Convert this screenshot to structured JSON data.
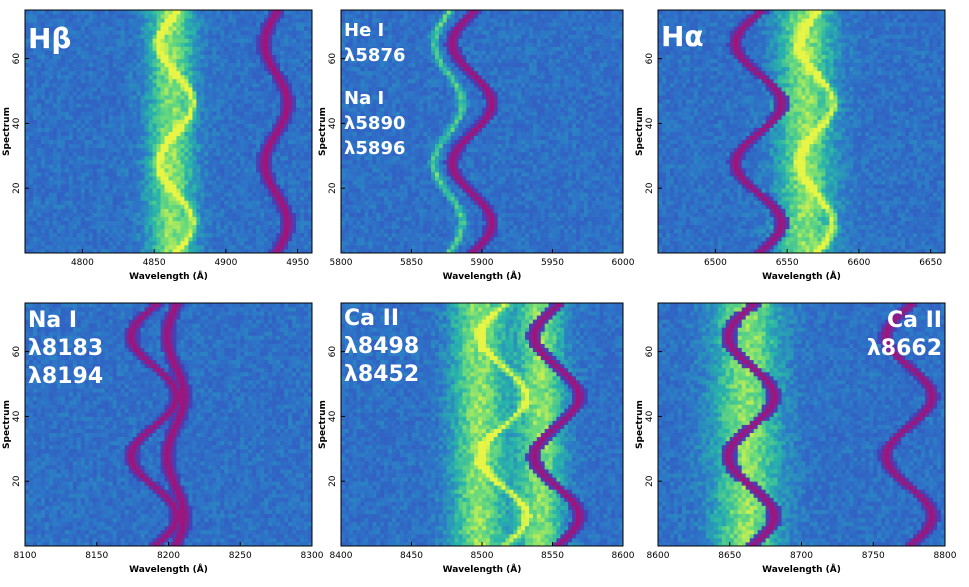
{
  "figure_description": "",
  "colors": {
    "background_low": "#3b4cc0",
    "mid": "#2db7a6",
    "high": "#e9f542",
    "absorption": "#b5126b"
  },
  "chart_data": [
    {
      "type": "heatmap",
      "id": "hb",
      "labels": [
        "Hβ"
      ],
      "xlabel": "Wavelength (Å)",
      "ylabel": "Spectrum",
      "xlim": [
        4760,
        4960
      ],
      "ylim": [
        0,
        75
      ],
      "xticks": [
        4800,
        4850,
        4900,
        4950
      ],
      "yticks": [
        20,
        40,
        60
      ],
      "bands": [
        {
          "center": 4862,
          "kind": "emission",
          "width": 18
        }
      ],
      "moving_features": [
        {
          "center": 4865,
          "amp": 12,
          "kind": "emission"
        },
        {
          "center": 4935,
          "amp": 8,
          "kind": "absorption"
        }
      ]
    },
    {
      "type": "heatmap",
      "id": "he",
      "labels": [
        "He I",
        "λ5876",
        "Na I",
        "λ5890",
        "λ5896"
      ],
      "xlabel": "Wavelength (Å)",
      "ylabel": "Spectrum",
      "xlim": [
        5800,
        6000
      ],
      "ylim": [
        0,
        75
      ],
      "xticks": [
        5800,
        5850,
        5900,
        5950,
        6000
      ],
      "yticks": [
        20,
        40,
        60
      ],
      "bands": [],
      "moving_features": [
        {
          "center": 5893,
          "amp": 14,
          "kind": "absorption"
        },
        {
          "center": 5876,
          "amp": 10,
          "kind": "emission"
        }
      ]
    },
    {
      "type": "heatmap",
      "id": "ha",
      "labels": [
        "Hα"
      ],
      "xlabel": "Wavelength (Å)",
      "ylabel": "Spectrum",
      "xlim": [
        6460,
        6660
      ],
      "ylim": [
        0,
        75
      ],
      "xticks": [
        6500,
        6550,
        6600,
        6650
      ],
      "yticks": [
        20,
        40,
        60
      ],
      "bands": [
        {
          "center": 6563,
          "kind": "emission",
          "width": 22
        }
      ],
      "moving_features": [
        {
          "center": 6570,
          "amp": 12,
          "kind": "emission"
        },
        {
          "center": 6530,
          "amp": 16,
          "kind": "absorption"
        }
      ]
    },
    {
      "type": "heatmap",
      "id": "na",
      "labels": [
        "Na I",
        "λ8183",
        "λ8194"
      ],
      "xlabel": "Wavelength (Å)",
      "ylabel": "Spectrum",
      "xlim": [
        8100,
        8300
      ],
      "ylim": [
        0,
        75
      ],
      "xticks": [
        8100,
        8150,
        8200,
        8250,
        8300
      ],
      "yticks": [
        20,
        40,
        60
      ],
      "bands": [],
      "moving_features": [
        {
          "center": 8190,
          "amp": 16,
          "kind": "absorption"
        },
        {
          "center": 8205,
          "amp": 6,
          "kind": "absorption"
        }
      ]
    },
    {
      "type": "heatmap",
      "id": "ca1",
      "labels": [
        "Ca II",
        "λ8498",
        "λ8452"
      ],
      "xlabel": "Wavelength (Å)",
      "ylabel": "Spectrum",
      "xlim": [
        8400,
        8600
      ],
      "ylim": [
        0,
        75
      ],
      "xticks": [
        8400,
        8450,
        8500,
        8550,
        8600
      ],
      "yticks": [
        20,
        40,
        60
      ],
      "bands": [
        {
          "center": 8498,
          "kind": "emission",
          "width": 22
        },
        {
          "center": 8542,
          "kind": "emission",
          "width": 18
        }
      ],
      "moving_features": [
        {
          "center": 8515,
          "amp": 16,
          "kind": "emission"
        },
        {
          "center": 8553,
          "amp": 16,
          "kind": "absorption"
        }
      ]
    },
    {
      "type": "heatmap",
      "id": "ca2",
      "labels": [
        "Ca II",
        "λ8662"
      ],
      "xlabel": "Wavelength (Å)",
      "ylabel": "Spectrum",
      "xlim": [
        8600,
        8800
      ],
      "ylim": [
        0,
        75
      ],
      "xticks": [
        8600,
        8650,
        8700,
        8750,
        8800
      ],
      "yticks": [
        20,
        40,
        60
      ],
      "bands": [
        {
          "center": 8662,
          "kind": "emission",
          "width": 26
        }
      ],
      "moving_features": [
        {
          "center": 8665,
          "amp": 16,
          "kind": "absorption"
        },
        {
          "center": 8775,
          "amp": 16,
          "kind": "absorption"
        }
      ]
    }
  ]
}
